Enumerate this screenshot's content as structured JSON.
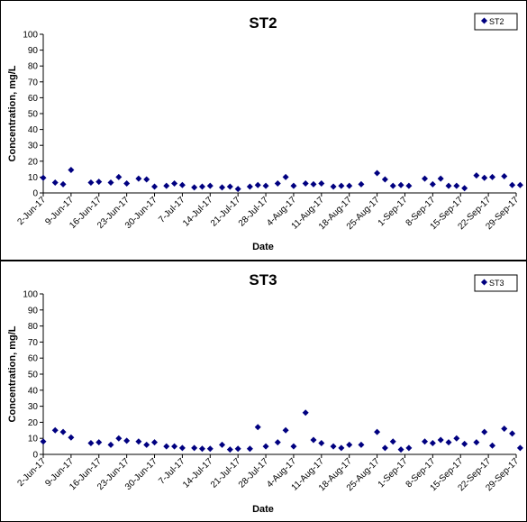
{
  "chart_data": [
    {
      "type": "scatter",
      "title": "ST2",
      "xlabel": "Date",
      "ylabel": "Concentration, mg/L",
      "ylim": [
        0,
        100
      ],
      "yticks": [
        0,
        10,
        20,
        30,
        40,
        50,
        60,
        70,
        80,
        90,
        100
      ],
      "xlim": [
        "2017-06-02",
        "2017-09-29"
      ],
      "xtick_labels": [
        "2-Jun-17",
        "9-Jun-17",
        "16-Jun-17",
        "23-Jun-17",
        "30-Jun-17",
        "7-Jul-17",
        "14-Jul-17",
        "21-Jul-17",
        "28-Jul-17",
        "4-Aug-17",
        "11-Aug-17",
        "18-Aug-17",
        "25-Aug-17",
        "1-Sep-17",
        "8-Sep-17",
        "15-Sep-17",
        "22-Sep-17",
        "29-Sep-17"
      ],
      "legend": {
        "placement": "top-right",
        "entries": [
          "ST2"
        ]
      },
      "marker_color": "#000080",
      "series": [
        {
          "name": "ST2",
          "points": [
            [
              "2017-06-02",
              9.5
            ],
            [
              "2017-06-05",
              6.5
            ],
            [
              "2017-06-07",
              5.5
            ],
            [
              "2017-06-09",
              14.5
            ],
            [
              "2017-06-14",
              6.5
            ],
            [
              "2017-06-16",
              7
            ],
            [
              "2017-06-19",
              6.5
            ],
            [
              "2017-06-21",
              10
            ],
            [
              "2017-06-23",
              6
            ],
            [
              "2017-06-26",
              9
            ],
            [
              "2017-06-28",
              8.5
            ],
            [
              "2017-06-30",
              4
            ],
            [
              "2017-07-03",
              4.5
            ],
            [
              "2017-07-05",
              6
            ],
            [
              "2017-07-07",
              5
            ],
            [
              "2017-07-10",
              3.5
            ],
            [
              "2017-07-12",
              4
            ],
            [
              "2017-07-14",
              4.5
            ],
            [
              "2017-07-17",
              3.5
            ],
            [
              "2017-07-19",
              4
            ],
            [
              "2017-07-21",
              2.5
            ],
            [
              "2017-07-24",
              4
            ],
            [
              "2017-07-26",
              5
            ],
            [
              "2017-07-28",
              4.5
            ],
            [
              "2017-07-31",
              6
            ],
            [
              "2017-08-02",
              10
            ],
            [
              "2017-08-04",
              4.5
            ],
            [
              "2017-08-07",
              6
            ],
            [
              "2017-08-09",
              5.5
            ],
            [
              "2017-08-11",
              6
            ],
            [
              "2017-08-14",
              4
            ],
            [
              "2017-08-16",
              4.5
            ],
            [
              "2017-08-18",
              4.5
            ],
            [
              "2017-08-21",
              5.5
            ],
            [
              "2017-08-25",
              12.5
            ],
            [
              "2017-08-27",
              8.5
            ],
            [
              "2017-08-29",
              4.5
            ],
            [
              "2017-08-31",
              5
            ],
            [
              "2017-09-02",
              4.5
            ],
            [
              "2017-09-06",
              9
            ],
            [
              "2017-09-08",
              5.5
            ],
            [
              "2017-09-10",
              9
            ],
            [
              "2017-09-12",
              4.5
            ],
            [
              "2017-09-14",
              4.5
            ],
            [
              "2017-09-16",
              3
            ],
            [
              "2017-09-19",
              11
            ],
            [
              "2017-09-21",
              9.5
            ],
            [
              "2017-09-23",
              10
            ],
            [
              "2017-09-26",
              10.5
            ],
            [
              "2017-09-28",
              5
            ],
            [
              "2017-09-30",
              5
            ]
          ]
        }
      ]
    },
    {
      "type": "scatter",
      "title": "ST3",
      "xlabel": "Date",
      "ylabel": "Concentration, mg/L",
      "ylim": [
        0,
        100
      ],
      "yticks": [
        0,
        10,
        20,
        30,
        40,
        50,
        60,
        70,
        80,
        90,
        100
      ],
      "xlim": [
        "2017-06-02",
        "2017-09-29"
      ],
      "xtick_labels": [
        "2-Jun-17",
        "9-Jun-17",
        "16-Jun-17",
        "23-Jun-17",
        "30-Jun-17",
        "7-Jul-17",
        "14-Jul-17",
        "21-Jul-17",
        "28-Jul-17",
        "4-Aug-17",
        "11-Aug-17",
        "18-Aug-17",
        "25-Aug-17",
        "1-Sep-17",
        "8-Sep-17",
        "15-Sep-17",
        "22-Sep-17",
        "29-Sep-17"
      ],
      "legend": {
        "placement": "top-right",
        "entries": [
          "ST3"
        ]
      },
      "marker_color": "#000080",
      "series": [
        {
          "name": "ST3",
          "points": [
            [
              "2017-06-02",
              8
            ],
            [
              "2017-06-05",
              15
            ],
            [
              "2017-06-07",
              14
            ],
            [
              "2017-06-09",
              10.5
            ],
            [
              "2017-06-14",
              7
            ],
            [
              "2017-06-16",
              7.5
            ],
            [
              "2017-06-19",
              6
            ],
            [
              "2017-06-21",
              10
            ],
            [
              "2017-06-23",
              8.5
            ],
            [
              "2017-06-26",
              8
            ],
            [
              "2017-06-28",
              6
            ],
            [
              "2017-06-30",
              7.5
            ],
            [
              "2017-07-03",
              5
            ],
            [
              "2017-07-05",
              5
            ],
            [
              "2017-07-07",
              4
            ],
            [
              "2017-07-10",
              4
            ],
            [
              "2017-07-12",
              3.5
            ],
            [
              "2017-07-14",
              3.5
            ],
            [
              "2017-07-17",
              6
            ],
            [
              "2017-07-19",
              3
            ],
            [
              "2017-07-21",
              3.5
            ],
            [
              "2017-07-24",
              3.5
            ],
            [
              "2017-07-26",
              17
            ],
            [
              "2017-07-28",
              5
            ],
            [
              "2017-07-31",
              7.5
            ],
            [
              "2017-08-02",
              15
            ],
            [
              "2017-08-04",
              5
            ],
            [
              "2017-08-07",
              26
            ],
            [
              "2017-08-09",
              9
            ],
            [
              "2017-08-11",
              7
            ],
            [
              "2017-08-14",
              5
            ],
            [
              "2017-08-16",
              4
            ],
            [
              "2017-08-18",
              6
            ],
            [
              "2017-08-21",
              6
            ],
            [
              "2017-08-25",
              14
            ],
            [
              "2017-08-27",
              4
            ],
            [
              "2017-08-29",
              8
            ],
            [
              "2017-08-31",
              3
            ],
            [
              "2017-09-02",
              4
            ],
            [
              "2017-09-06",
              8
            ],
            [
              "2017-09-08",
              7
            ],
            [
              "2017-09-10",
              9
            ],
            [
              "2017-09-12",
              7.5
            ],
            [
              "2017-09-14",
              10
            ],
            [
              "2017-09-16",
              6.5
            ],
            [
              "2017-09-19",
              7.5
            ],
            [
              "2017-09-21",
              14
            ],
            [
              "2017-09-23",
              5.5
            ],
            [
              "2017-09-26",
              16
            ],
            [
              "2017-09-28",
              13
            ],
            [
              "2017-09-30",
              4
            ]
          ]
        }
      ]
    }
  ]
}
